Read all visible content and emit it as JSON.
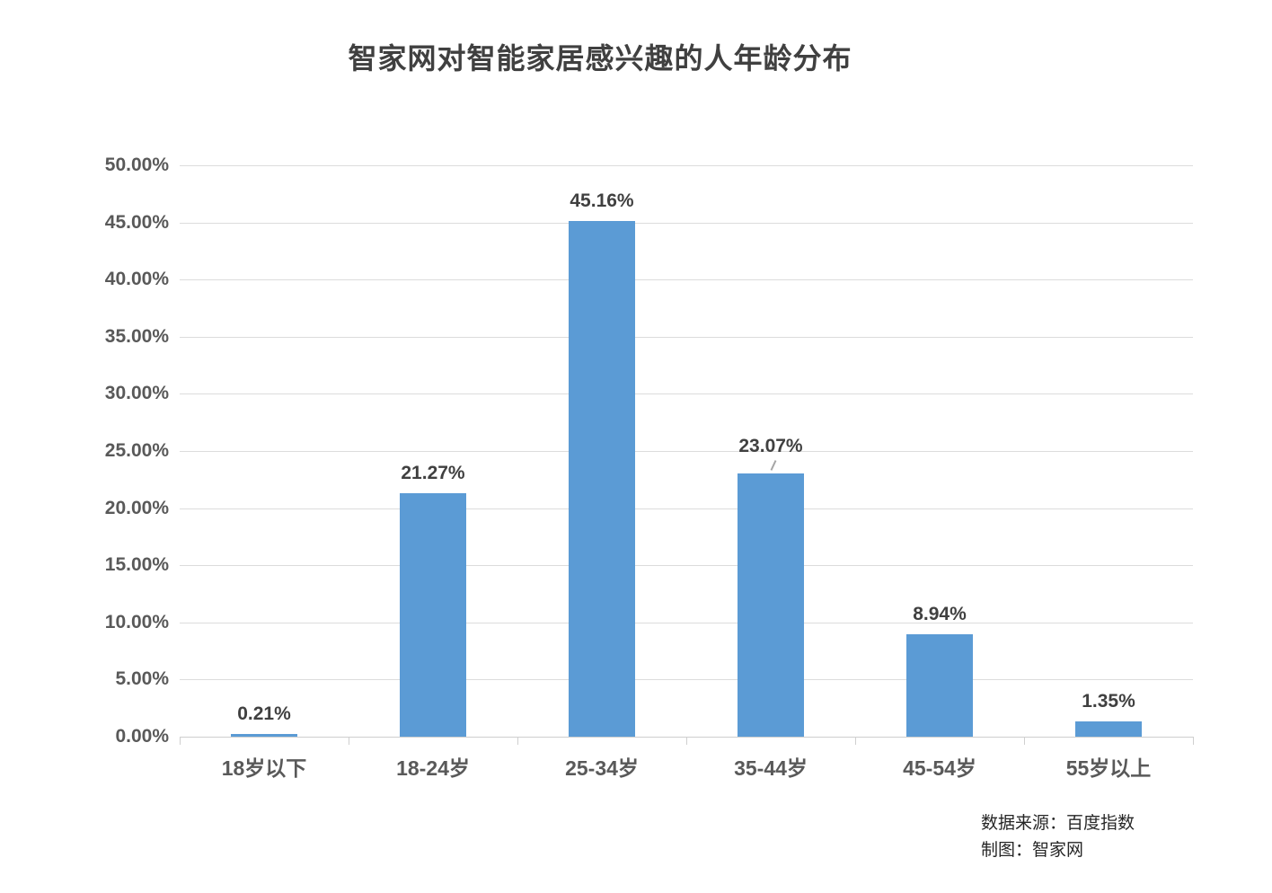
{
  "title": "智家网对智能家居感兴趣的人年龄分布",
  "source": {
    "line1": "数据来源：百度指数",
    "line2": "制图：智家网"
  },
  "colors": {
    "bar": "#5b9bd5",
    "gridline": "#dcdcdc",
    "axis_line": "#cfcfcf",
    "title_text": "#404040",
    "axis_text": "#595959",
    "data_label_text": "#404040",
    "source_text": "#262626",
    "background": "#ffffff"
  },
  "chart_data": {
    "type": "bar",
    "title": "智家网对智能家居感兴趣的人年龄分布",
    "categories": [
      "18岁以下",
      "18-24岁",
      "25-34岁",
      "35-44岁",
      "45-54岁",
      "55岁以上"
    ],
    "values": [
      0.21,
      21.27,
      45.16,
      23.07,
      8.94,
      1.35
    ],
    "data_labels": [
      "0.21%",
      "21.27%",
      "45.16%",
      "23.07%",
      "8.94%",
      "1.35%"
    ],
    "xlabel": "",
    "ylabel": "",
    "y_axis": {
      "min": 0,
      "max": 50,
      "step": 5,
      "tick_labels": [
        "0.00%",
        "5.00%",
        "10.00%",
        "15.00%",
        "20.00%",
        "25.00%",
        "30.00%",
        "35.00%",
        "40.00%",
        "45.00%",
        "50.00%"
      ]
    },
    "grid": "horizontal",
    "legend": "none",
    "leader_line_category_index": 3
  }
}
